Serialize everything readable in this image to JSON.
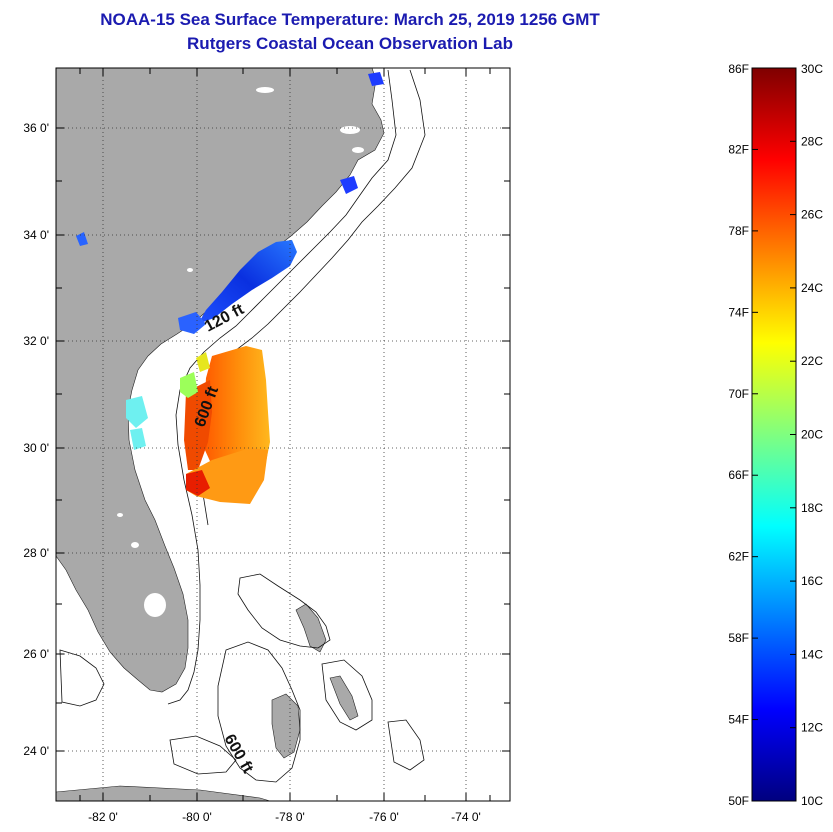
{
  "header": {
    "title": "NOAA-15 Sea Surface Temperature:  March 25, 2019 1256 GMT",
    "subtitle": "Rutgers Coastal Ocean Observation Lab"
  },
  "map": {
    "lon_ticks": [
      "-82 0'",
      "-80 0'",
      "-78 0'",
      "-76 0'",
      "-74 0'"
    ],
    "lat_ticks": [
      "36 0'",
      "34 0'",
      "32 0'",
      "30 0'",
      "28 0'",
      "26 0'",
      "24 0'"
    ],
    "contour_labels": [
      "120 ft",
      "600 ft",
      "600 ft"
    ],
    "land_color": "#a9a9a9",
    "grid": true
  },
  "colorbar": {
    "f_labels": [
      "86F",
      "82F",
      "78F",
      "74F",
      "70F",
      "66F",
      "62F",
      "58F",
      "54F",
      "50F"
    ],
    "c_labels": [
      "30C",
      "28C",
      "26C",
      "24C",
      "22C",
      "20C",
      "18C",
      "16C",
      "14C",
      "12C",
      "10C"
    ],
    "range_f": [
      50,
      86
    ],
    "range_c": [
      10,
      30
    ],
    "colormap": "jet"
  }
}
